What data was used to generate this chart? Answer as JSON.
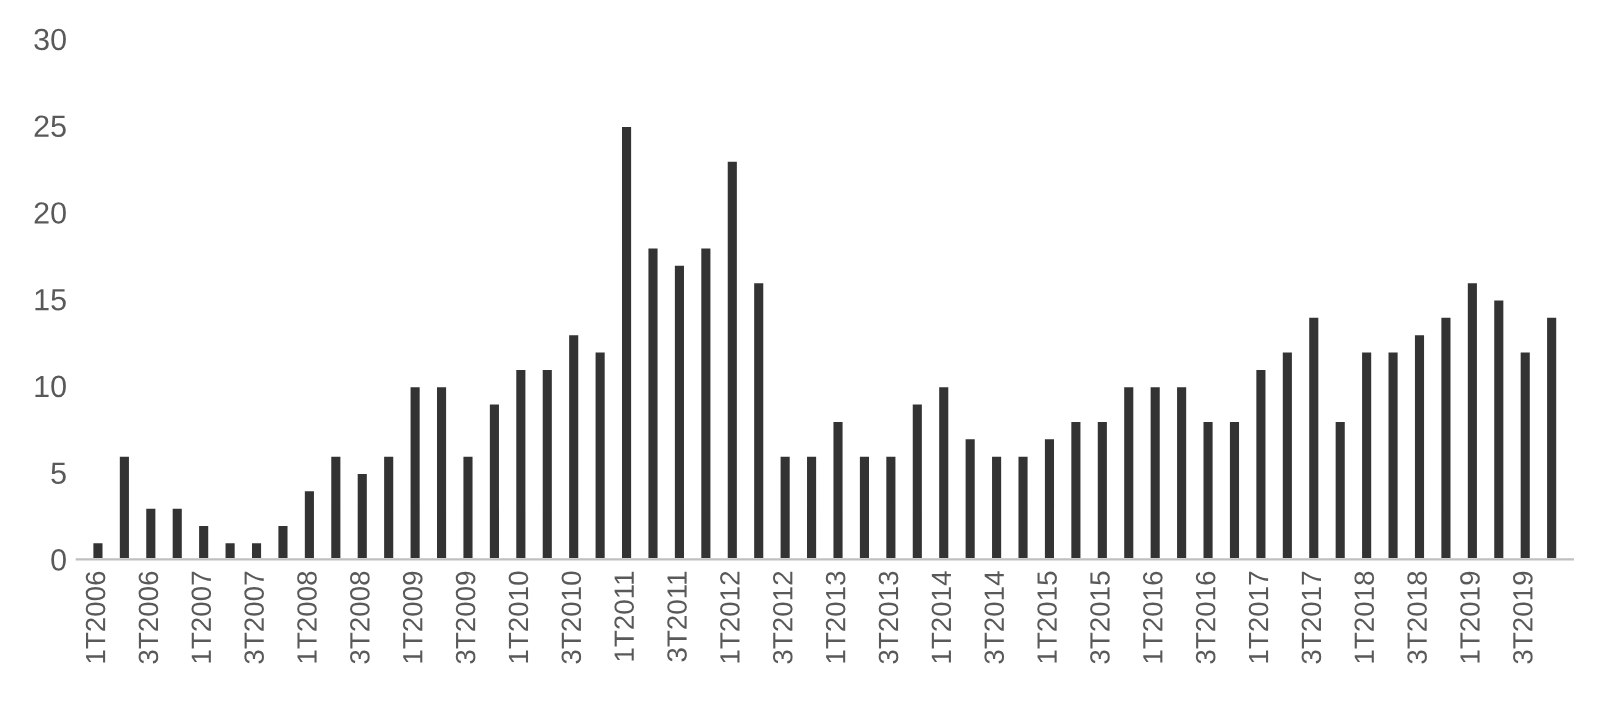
{
  "chart_data": {
    "type": "bar",
    "categories": [
      "1T2006",
      null,
      "3T2006",
      null,
      "1T2007",
      null,
      "3T2007",
      null,
      "1T2008",
      null,
      "3T2008",
      null,
      "1T2009",
      null,
      "3T2009",
      null,
      "1T2010",
      null,
      "3T2010",
      null,
      "1T2011",
      null,
      "3T2011",
      null,
      "1T2012",
      null,
      "3T2012",
      null,
      "1T2013",
      null,
      "3T2013",
      null,
      "1T2014",
      null,
      "3T2014",
      null,
      "1T2015",
      null,
      "3T2015",
      null,
      "1T2016",
      null,
      "3T2016",
      null,
      "1T2017",
      null,
      "3T2017",
      null,
      "1T2018",
      null,
      "3T2018",
      null,
      "1T2019",
      null,
      "3T2019",
      null
    ],
    "values": [
      1,
      6,
      3,
      3,
      2,
      1,
      1,
      2,
      4,
      6,
      5,
      6,
      10,
      10,
      6,
      9,
      11,
      11,
      13,
      12,
      25,
      18,
      17,
      18,
      23,
      16,
      6,
      6,
      8,
      6,
      6,
      9,
      10,
      7,
      6,
      6,
      7,
      8,
      8,
      10,
      10,
      10,
      8,
      8,
      11,
      12,
      14,
      8,
      12,
      12,
      13,
      14,
      16,
      15,
      12,
      14
    ],
    "color": "#333333",
    "ylim": [
      0,
      30
    ],
    "yticks": [
      0,
      5,
      10,
      15,
      20,
      25,
      30
    ],
    "grid": false
  }
}
